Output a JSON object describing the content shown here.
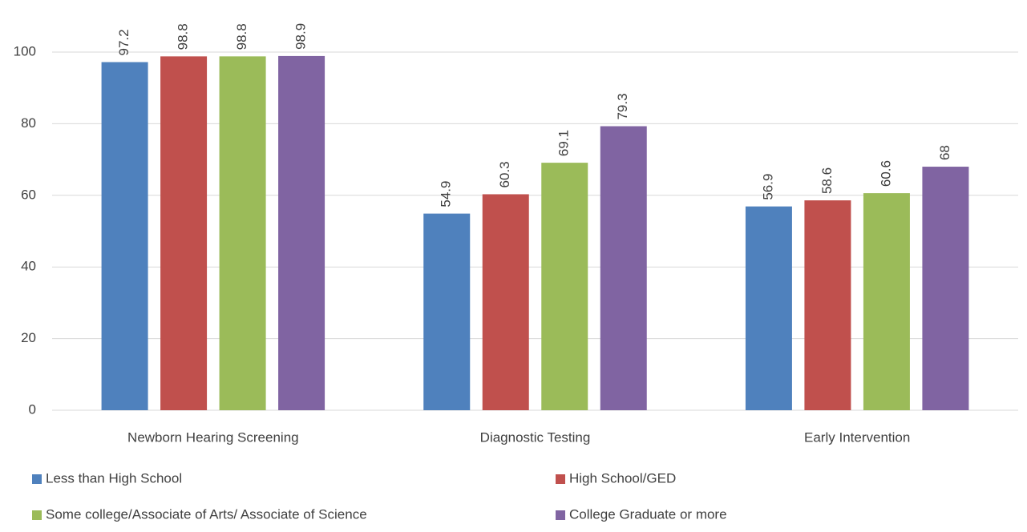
{
  "chart_data": {
    "type": "bar",
    "categories": [
      "Newborn Hearing Screening",
      "Diagnostic Testing",
      "Early Intervention"
    ],
    "series": [
      {
        "name": "Less than High School",
        "color": "#4f81bd",
        "values": [
          97.2,
          54.9,
          56.9
        ]
      },
      {
        "name": "High School/GED",
        "color": "#c0504d",
        "values": [
          98.8,
          60.3,
          58.6
        ]
      },
      {
        "name": "Some college/Associate of Arts/ Associate of Science",
        "color": "#9bbb59",
        "values": [
          98.8,
          69.1,
          60.6
        ]
      },
      {
        "name": "College Graduate or more",
        "color": "#8064a2",
        "values": [
          98.9,
          79.3,
          68
        ]
      }
    ],
    "ylim": [
      0,
      100
    ],
    "yticks": [
      0,
      20,
      40,
      60,
      80,
      100
    ],
    "grid": true,
    "legend": "bottom"
  }
}
